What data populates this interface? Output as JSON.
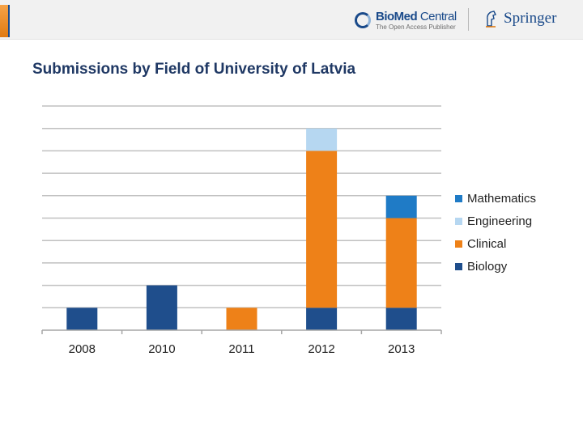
{
  "header": {
    "biomed": {
      "name_bold": "BioMed",
      "name_light": " Central",
      "tagline": "The Open Access Publisher"
    },
    "springer": {
      "name": "Springer"
    }
  },
  "page_title": "Submissions by Field of University of Latvia",
  "colors": {
    "Biology": "#1f4e8c",
    "Clinical": "#ee8118",
    "Engineering": "#b6d7f1",
    "Mathematics": "#1f7bc6",
    "gridline": "#c0c0c0",
    "title": "#1f3864"
  },
  "chart_data": {
    "type": "bar",
    "stacked": true,
    "title": "Submissions by Field of University of Latvia",
    "xlabel": "",
    "ylabel": "",
    "categories": [
      "2008",
      "2010",
      "2011",
      "2012",
      "2013"
    ],
    "series": [
      {
        "name": "Biology",
        "values": [
          1,
          2,
          0,
          1,
          1
        ]
      },
      {
        "name": "Clinical",
        "values": [
          0,
          0,
          1,
          7,
          4
        ]
      },
      {
        "name": "Engineering",
        "values": [
          0,
          0,
          0,
          1,
          0
        ]
      },
      {
        "name": "Mathematics",
        "values": [
          0,
          0,
          0,
          0,
          1
        ]
      }
    ],
    "legend_order": [
      "Mathematics",
      "Engineering",
      "Clinical",
      "Biology"
    ],
    "ylim": [
      0,
      10
    ],
    "grid": true,
    "legend_position": "right"
  }
}
